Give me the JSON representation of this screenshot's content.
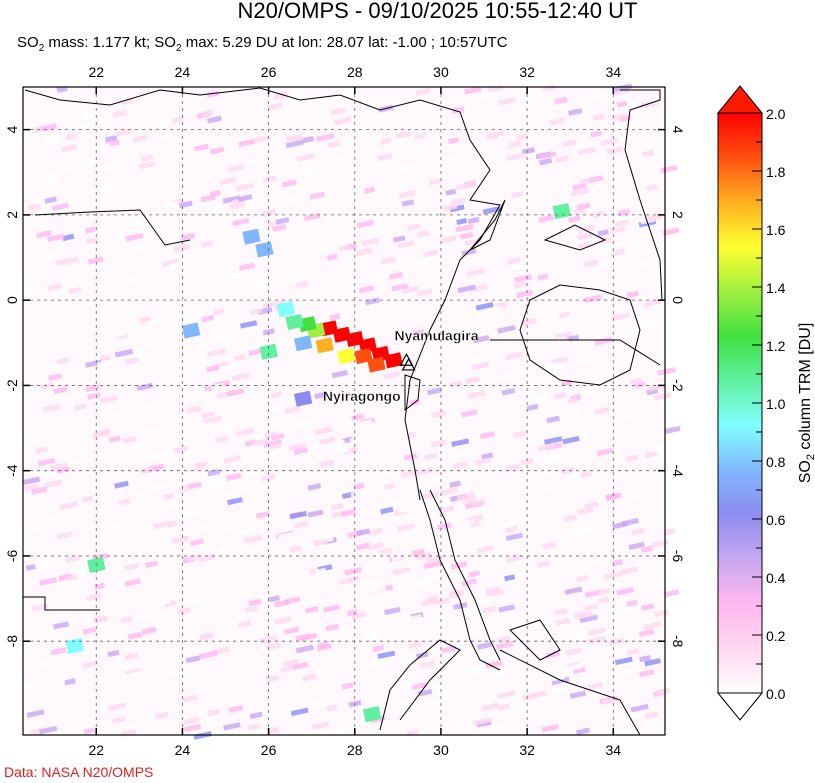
{
  "title": "N20/OMPS - 09/10/2025 10:55-12:40 UT",
  "subtitle": {
    "prefix1": "SO",
    "sub": "2",
    "mass_text": " mass: 1.177 kt; SO",
    "max_text": " max: 5.29 DU at lon: 28.07 lat: -1.00 ; 10:57UTC"
  },
  "credit": "Data: NASA N20/OMPS",
  "map": {
    "lon_range": [
      20.3,
      35.2
    ],
    "lat_range": [
      -10.2,
      5.0
    ],
    "lon_ticks": [
      "22",
      "24",
      "26",
      "28",
      "30",
      "32",
      "34"
    ],
    "lat_ticks": [
      "4",
      "2",
      "0",
      "-2",
      "-4",
      "-6",
      "-8"
    ],
    "grid": true,
    "volcanoes": [
      {
        "name": "Nyamulagira",
        "lon": 29.2,
        "lat": -1.41
      },
      {
        "name": "Nyiragongo",
        "lon": 29.25,
        "lat": -1.52
      }
    ],
    "plume_cells": [
      {
        "lon": 27.4,
        "lat": -0.65,
        "v": 2.0
      },
      {
        "lon": 27.7,
        "lat": -0.8,
        "v": 2.0
      },
      {
        "lon": 28.0,
        "lat": -0.9,
        "v": 2.0
      },
      {
        "lon": 28.3,
        "lat": -1.05,
        "v": 2.0
      },
      {
        "lon": 28.6,
        "lat": -1.25,
        "v": 2.0
      },
      {
        "lon": 28.9,
        "lat": -1.4,
        "v": 2.0
      },
      {
        "lon": 28.2,
        "lat": -1.3,
        "v": 1.9
      },
      {
        "lon": 27.1,
        "lat": -0.7,
        "v": 1.4
      },
      {
        "lon": 26.9,
        "lat": -0.55,
        "v": 1.3
      },
      {
        "lon": 27.3,
        "lat": -1.05,
        "v": 1.7
      },
      {
        "lon": 27.8,
        "lat": -1.3,
        "v": 1.5
      },
      {
        "lon": 26.6,
        "lat": -0.5,
        "v": 1.1
      },
      {
        "lon": 26.4,
        "lat": -0.2,
        "v": 0.9
      },
      {
        "lon": 26.0,
        "lat": -1.2,
        "v": 1.0
      },
      {
        "lon": 28.5,
        "lat": -1.5,
        "v": 1.8
      },
      {
        "lon": 26.8,
        "lat": -1.0,
        "v": 0.8
      },
      {
        "lon": 25.6,
        "lat": 1.5,
        "v": 0.7
      },
      {
        "lon": 25.9,
        "lat": 1.2,
        "v": 0.8
      },
      {
        "lon": 24.2,
        "lat": -0.7,
        "v": 0.7
      },
      {
        "lon": 22.0,
        "lat": -6.2,
        "v": 1.0
      },
      {
        "lon": 32.8,
        "lat": 2.1,
        "v": 1.0
      },
      {
        "lon": 26.8,
        "lat": -2.3,
        "v": 0.6
      },
      {
        "lon": 21.5,
        "lat": -8.1,
        "v": 0.9
      },
      {
        "lon": 28.4,
        "lat": -9.7,
        "v": 1.0
      }
    ]
  },
  "colorbar": {
    "min": 0.0,
    "max": 2.0,
    "tick_labels": [
      "0.0",
      "0.2",
      "0.4",
      "0.6",
      "0.8",
      "1.0",
      "1.2",
      "1.4",
      "1.6",
      "1.8",
      "2.0"
    ],
    "label_prefix": "SO",
    "label_sub": "2",
    "label_suffix": " column TRM [DU]",
    "colors": [
      "#ffffff",
      "#ffd8f0",
      "#ffb8f0",
      "#c8a8f0",
      "#8c8cf0",
      "#80b8ff",
      "#80ffff",
      "#60f0a0",
      "#40e040",
      "#a0f040",
      "#ffff30",
      "#ffb020",
      "#ff5010",
      "#ff0000"
    ]
  }
}
